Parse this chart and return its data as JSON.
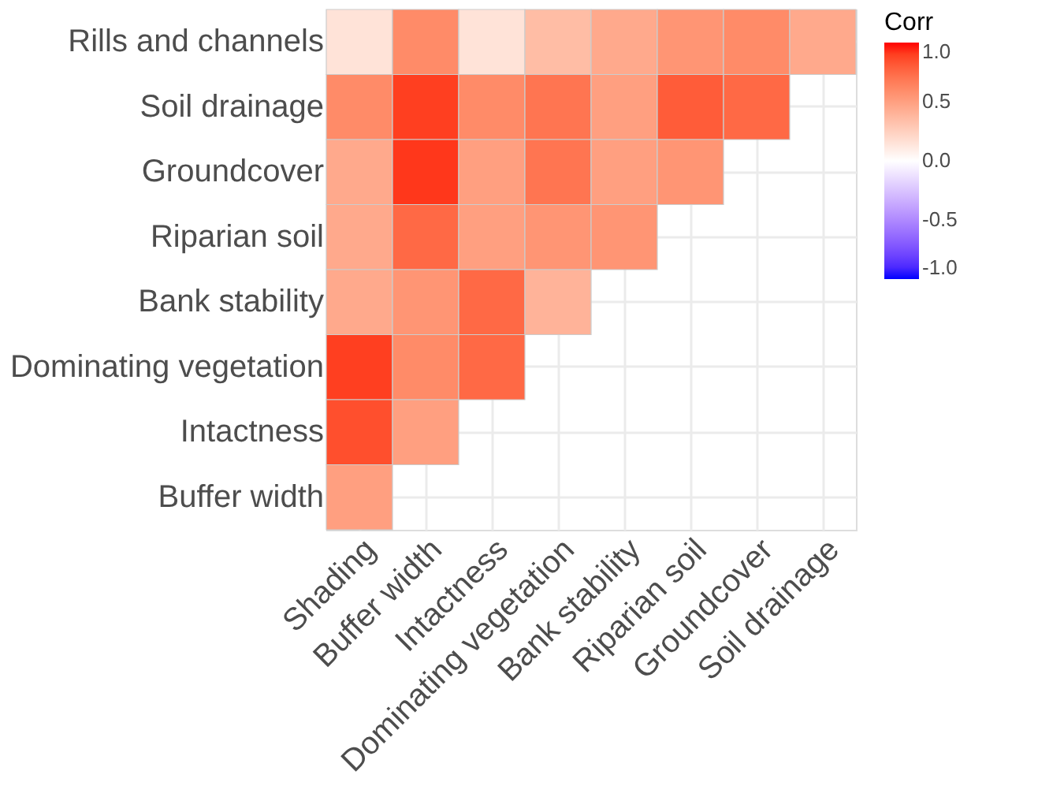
{
  "chart_data": {
    "type": "heatmap",
    "clabel": "Corr",
    "categories": [
      "Shading",
      "Buffer width",
      "Intactness",
      "Dominating vegetation",
      "Bank stability",
      "Riparian soil",
      "Groundcover",
      "Soil drainage"
    ],
    "y_categories": [
      "Rills and channels",
      "Soil drainage",
      "Groundcover",
      "Riparian soil",
      "Bank stability",
      "Dominating vegetation",
      "Intactness",
      "Buffer width"
    ],
    "cells": [
      [
        0.15,
        0.6,
        0.15,
        0.35,
        0.45,
        0.55,
        0.6,
        0.45
      ],
      [
        0.6,
        0.9,
        0.6,
        0.7,
        0.5,
        0.8,
        0.75,
        null
      ],
      [
        0.45,
        0.92,
        0.5,
        0.7,
        0.5,
        0.55,
        null,
        null
      ],
      [
        0.45,
        0.75,
        0.5,
        0.55,
        0.55,
        null,
        null,
        null
      ],
      [
        0.45,
        0.55,
        0.75,
        0.4,
        null,
        null,
        null,
        null
      ],
      [
        0.9,
        0.6,
        0.75,
        null,
        null,
        null,
        null,
        null
      ],
      [
        0.85,
        0.5,
        null,
        null,
        null,
        null,
        null,
        null
      ],
      [
        0.5,
        null,
        null,
        null,
        null,
        null,
        null,
        null
      ]
    ],
    "clim": [
      -1,
      1
    ],
    "cticks": [
      {
        "value": -1,
        "label": "-1.0"
      },
      {
        "value": -0.5,
        "label": "-0.5"
      },
      {
        "value": 0,
        "label": "0.0"
      },
      {
        "value": 0.5,
        "label": "0.5"
      },
      {
        "value": 1,
        "label": "1.0"
      }
    ],
    "colors": [
      "#0000ff",
      "#ffffff",
      "#ff0000"
    ],
    "grid": true
  }
}
